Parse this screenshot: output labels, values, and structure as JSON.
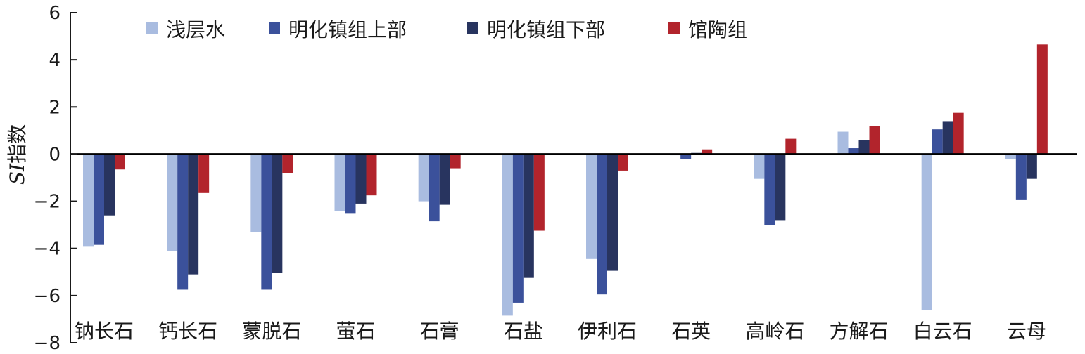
{
  "chart_data": {
    "type": "bar",
    "title": "",
    "xlabel": "",
    "ylabel_italic": "SI",
    "ylabel_rest": "指数",
    "ylim": [
      -8,
      6
    ],
    "yticks": [
      6,
      4,
      2,
      0,
      -2,
      -4,
      -6,
      -8
    ],
    "ytick_labels": [
      "6",
      "4",
      "2",
      "0",
      "−2",
      "−4",
      "−6",
      "−8"
    ],
    "grid": false,
    "legend_position": "top",
    "categories": [
      "钠长石",
      "钙长石",
      "蒙脱石",
      "萤石",
      "石膏",
      "石盐",
      "伊利石",
      "石英",
      "高岭石",
      "方解石",
      "白云石",
      "云母"
    ],
    "series": [
      {
        "name": "浅层水",
        "color": "#a9bce0",
        "values": [
          -3.9,
          -4.1,
          -3.3,
          -2.4,
          -2.0,
          -6.85,
          -4.45,
          -0.05,
          -1.05,
          0.95,
          -6.6,
          -0.2
        ]
      },
      {
        "name": "明化镇组上部",
        "color": "#3b519b",
        "values": [
          -3.85,
          -5.75,
          -5.75,
          -2.5,
          -2.85,
          -6.3,
          -5.95,
          -0.2,
          -3.0,
          0.25,
          1.05,
          -1.95
        ]
      },
      {
        "name": "明化镇组下部",
        "color": "#28345f",
        "values": [
          -2.6,
          -5.1,
          -5.05,
          -2.1,
          -2.15,
          -5.25,
          -4.95,
          0.05,
          -2.8,
          0.6,
          1.4,
          -1.05
        ]
      },
      {
        "name": "馆陶组",
        "color": "#b2242c",
        "values": [
          -0.65,
          -1.65,
          -0.8,
          -1.75,
          -0.6,
          -3.25,
          -0.7,
          0.2,
          0.65,
          1.2,
          1.75,
          4.65
        ]
      }
    ]
  }
}
